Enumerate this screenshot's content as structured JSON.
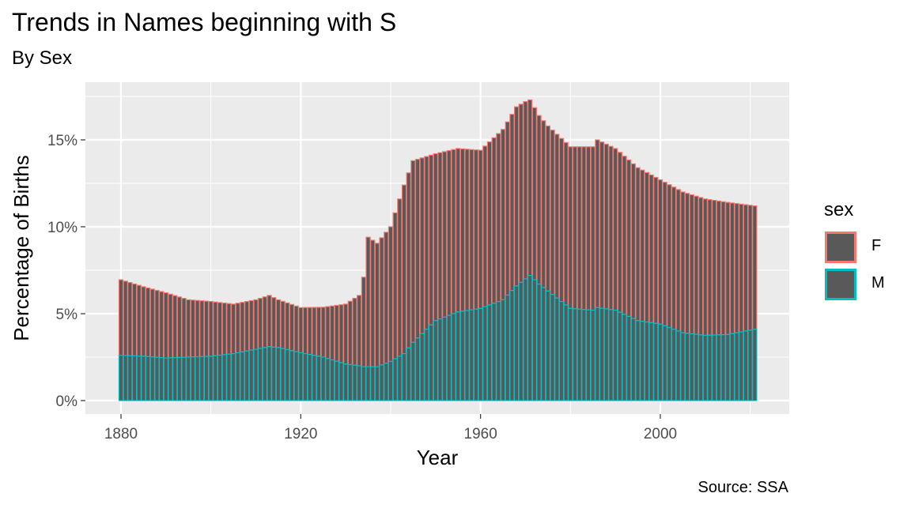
{
  "chart_data": {
    "type": "bar",
    "stacked": true,
    "title": "Trends in Names beginning with S",
    "subtitle": "By Sex",
    "xlabel": "Year",
    "ylabel": "Percentage of Births",
    "caption": "Source: SSA",
    "legend_title": "sex",
    "legend_position": "right",
    "xlim": [
      1880,
      2021
    ],
    "ylim": [
      0,
      0.18
    ],
    "xticks": [
      1880,
      1920,
      1960,
      2000
    ],
    "yticks": [
      0,
      0.05,
      0.1,
      0.15
    ],
    "ytick_labels": [
      "0%",
      "5%",
      "10%",
      "15%"
    ],
    "grid": true,
    "colors": {
      "F": "#F8766D",
      "M": "#00BFC4",
      "fill": "#595959",
      "panel": "#EBEBEB",
      "gridline": "#FFFFFF"
    },
    "x_anchor": [
      1880,
      1885,
      1890,
      1895,
      1900,
      1905,
      1910,
      1913,
      1915,
      1920,
      1925,
      1930,
      1933,
      1934,
      1935,
      1937,
      1940,
      1943,
      1945,
      1950,
      1955,
      1960,
      1965,
      1968,
      1970,
      1971,
      1973,
      1975,
      1980,
      1985,
      1986,
      1990,
      1995,
      2000,
      2005,
      2010,
      2015,
      2021
    ],
    "total_anchor": [
      0.0695,
      0.0655,
      0.062,
      0.058,
      0.057,
      0.0555,
      0.058,
      0.0605,
      0.058,
      0.0535,
      0.0537,
      0.0555,
      0.0605,
      0.071,
      0.094,
      0.0905,
      0.1,
      0.124,
      0.138,
      0.142,
      0.145,
      0.144,
      0.156,
      0.169,
      0.172,
      0.173,
      0.164,
      0.158,
      0.146,
      0.146,
      0.15,
      0.145,
      0.134,
      0.127,
      0.12,
      0.116,
      0.114,
      0.112
    ],
    "male_anchor": [
      0.026,
      0.0255,
      0.0245,
      0.025,
      0.0255,
      0.027,
      0.0295,
      0.031,
      0.0305,
      0.0275,
      0.025,
      0.021,
      0.02,
      0.0195,
      0.0195,
      0.0195,
      0.0225,
      0.027,
      0.0335,
      0.046,
      0.051,
      0.053,
      0.058,
      0.066,
      0.07,
      0.072,
      0.067,
      0.063,
      0.053,
      0.052,
      0.0535,
      0.052,
      0.046,
      0.044,
      0.039,
      0.0375,
      0.038,
      0.041
    ],
    "series": [
      {
        "name": "F"
      },
      {
        "name": "M"
      }
    ]
  }
}
